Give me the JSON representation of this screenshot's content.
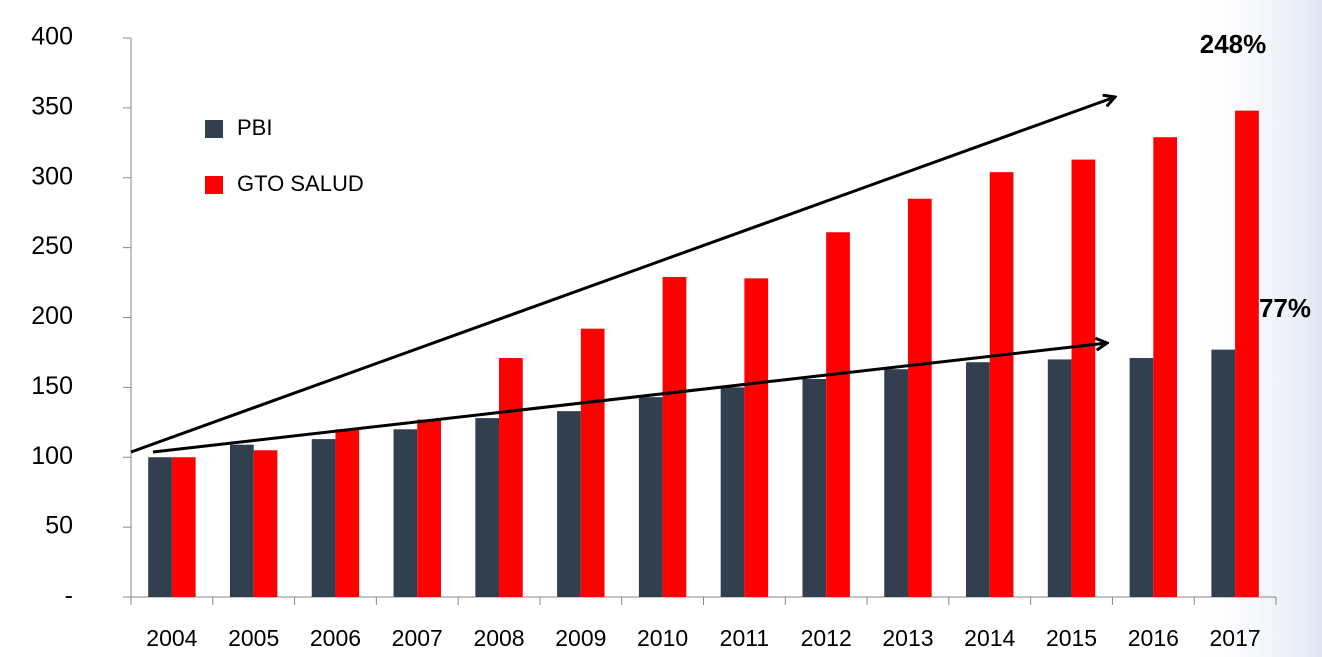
{
  "chart_data": {
    "type": "bar",
    "categories": [
      "2004",
      "2005",
      "2006",
      "2007",
      "2008",
      "2009",
      "2010",
      "2011",
      "2012",
      "2013",
      "2014",
      "2015",
      "2016",
      "2017"
    ],
    "series": [
      {
        "name": "PBI",
        "color": "#323f4f",
        "values": [
          100,
          109,
          113,
          120,
          128,
          133,
          143,
          150,
          156,
          163,
          168,
          170,
          171,
          177
        ]
      },
      {
        "name": "GTO SALUD",
        "color": "#ff0000",
        "values": [
          100,
          105,
          120,
          127,
          171,
          192,
          229,
          228,
          261,
          285,
          304,
          313,
          329,
          348
        ]
      }
    ],
    "ylim": [
      0,
      400
    ],
    "yticks": [
      {
        "value": 0,
        "label": "-"
      },
      50,
      100,
      150,
      200,
      250,
      300,
      350,
      400
    ],
    "annotations": [
      "248%",
      "77%"
    ]
  }
}
